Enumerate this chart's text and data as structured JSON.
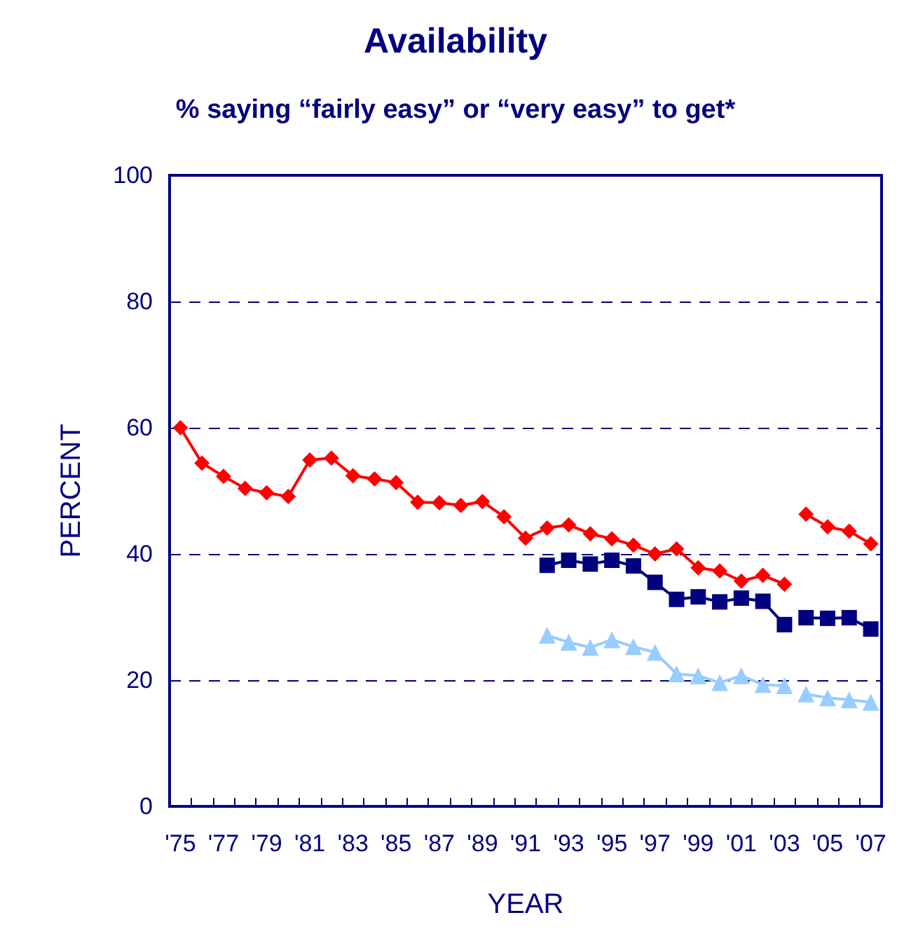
{
  "chart_data": {
    "type": "line",
    "title": "Availability",
    "subtitle": "% saying “fairly easy” or “very easy” to get*",
    "xlabel": "YEAR",
    "ylabel": "PERCENT",
    "categories": [
      "'75",
      null,
      "'77",
      null,
      "'79",
      null,
      "'81",
      null,
      "'83",
      null,
      "'85",
      null,
      "'87",
      null,
      "'89",
      null,
      "'91",
      null,
      "'93",
      null,
      "'95",
      null,
      "'97",
      null,
      "'99",
      null,
      "'01",
      null,
      "'03",
      null,
      "'05",
      null,
      "'07"
    ],
    "series": [
      {
        "color": "#ff0000",
        "marker": "diamond",
        "values": [
          60.0,
          54.4,
          52.3,
          50.4,
          49.7,
          49.1,
          54.9,
          55.2,
          52.4,
          51.9,
          51.3,
          48.2,
          48.1,
          47.7,
          48.3,
          45.9,
          42.5,
          44.1,
          44.6,
          43.2,
          42.4,
          41.4,
          40.0,
          40.8,
          37.8,
          37.3,
          35.7,
          36.6,
          35.2,
          null,
          null,
          null,
          null
        ]
      },
      {
        "color": "#ff0000",
        "marker": "diamond",
        "values": [
          null,
          null,
          null,
          null,
          null,
          null,
          null,
          null,
          null,
          null,
          null,
          null,
          null,
          null,
          null,
          null,
          null,
          null,
          null,
          null,
          null,
          null,
          null,
          null,
          null,
          null,
          null,
          null,
          null,
          46.3,
          44.3,
          43.6,
          41.6
        ]
      },
      {
        "color": "#000080",
        "marker": "square",
        "values": [
          null,
          null,
          null,
          null,
          null,
          null,
          null,
          null,
          null,
          null,
          null,
          null,
          null,
          null,
          null,
          null,
          null,
          38.2,
          39.0,
          38.4,
          39.0,
          38.1,
          35.5,
          32.8,
          33.2,
          32.4,
          33.0,
          32.5,
          28.8,
          null,
          null,
          null,
          null
        ]
      },
      {
        "color": "#000080",
        "marker": "square",
        "values": [
          null,
          null,
          null,
          null,
          null,
          null,
          null,
          null,
          null,
          null,
          null,
          null,
          null,
          null,
          null,
          null,
          null,
          null,
          null,
          null,
          null,
          null,
          null,
          null,
          null,
          null,
          null,
          null,
          null,
          29.9,
          29.8,
          29.9,
          28.1
        ]
      },
      {
        "color": "#99ccff",
        "marker": "triangle",
        "values": [
          null,
          null,
          null,
          null,
          null,
          null,
          null,
          null,
          null,
          null,
          null,
          null,
          null,
          null,
          null,
          null,
          null,
          27.1,
          26.0,
          25.2,
          26.4,
          25.3,
          24.4,
          21.0,
          20.7,
          19.6,
          20.7,
          19.3,
          19.1,
          null,
          null,
          null,
          null
        ]
      },
      {
        "color": "#99ccff",
        "marker": "triangle",
        "values": [
          null,
          null,
          null,
          null,
          null,
          null,
          null,
          null,
          null,
          null,
          null,
          null,
          null,
          null,
          null,
          null,
          null,
          null,
          null,
          null,
          null,
          null,
          null,
          null,
          null,
          null,
          null,
          null,
          null,
          17.8,
          17.2,
          16.9,
          16.5
        ]
      }
    ],
    "ylim": [
      0,
      100
    ],
    "yticks": [
      0,
      20,
      40,
      60,
      80,
      100
    ],
    "grid": "y"
  }
}
